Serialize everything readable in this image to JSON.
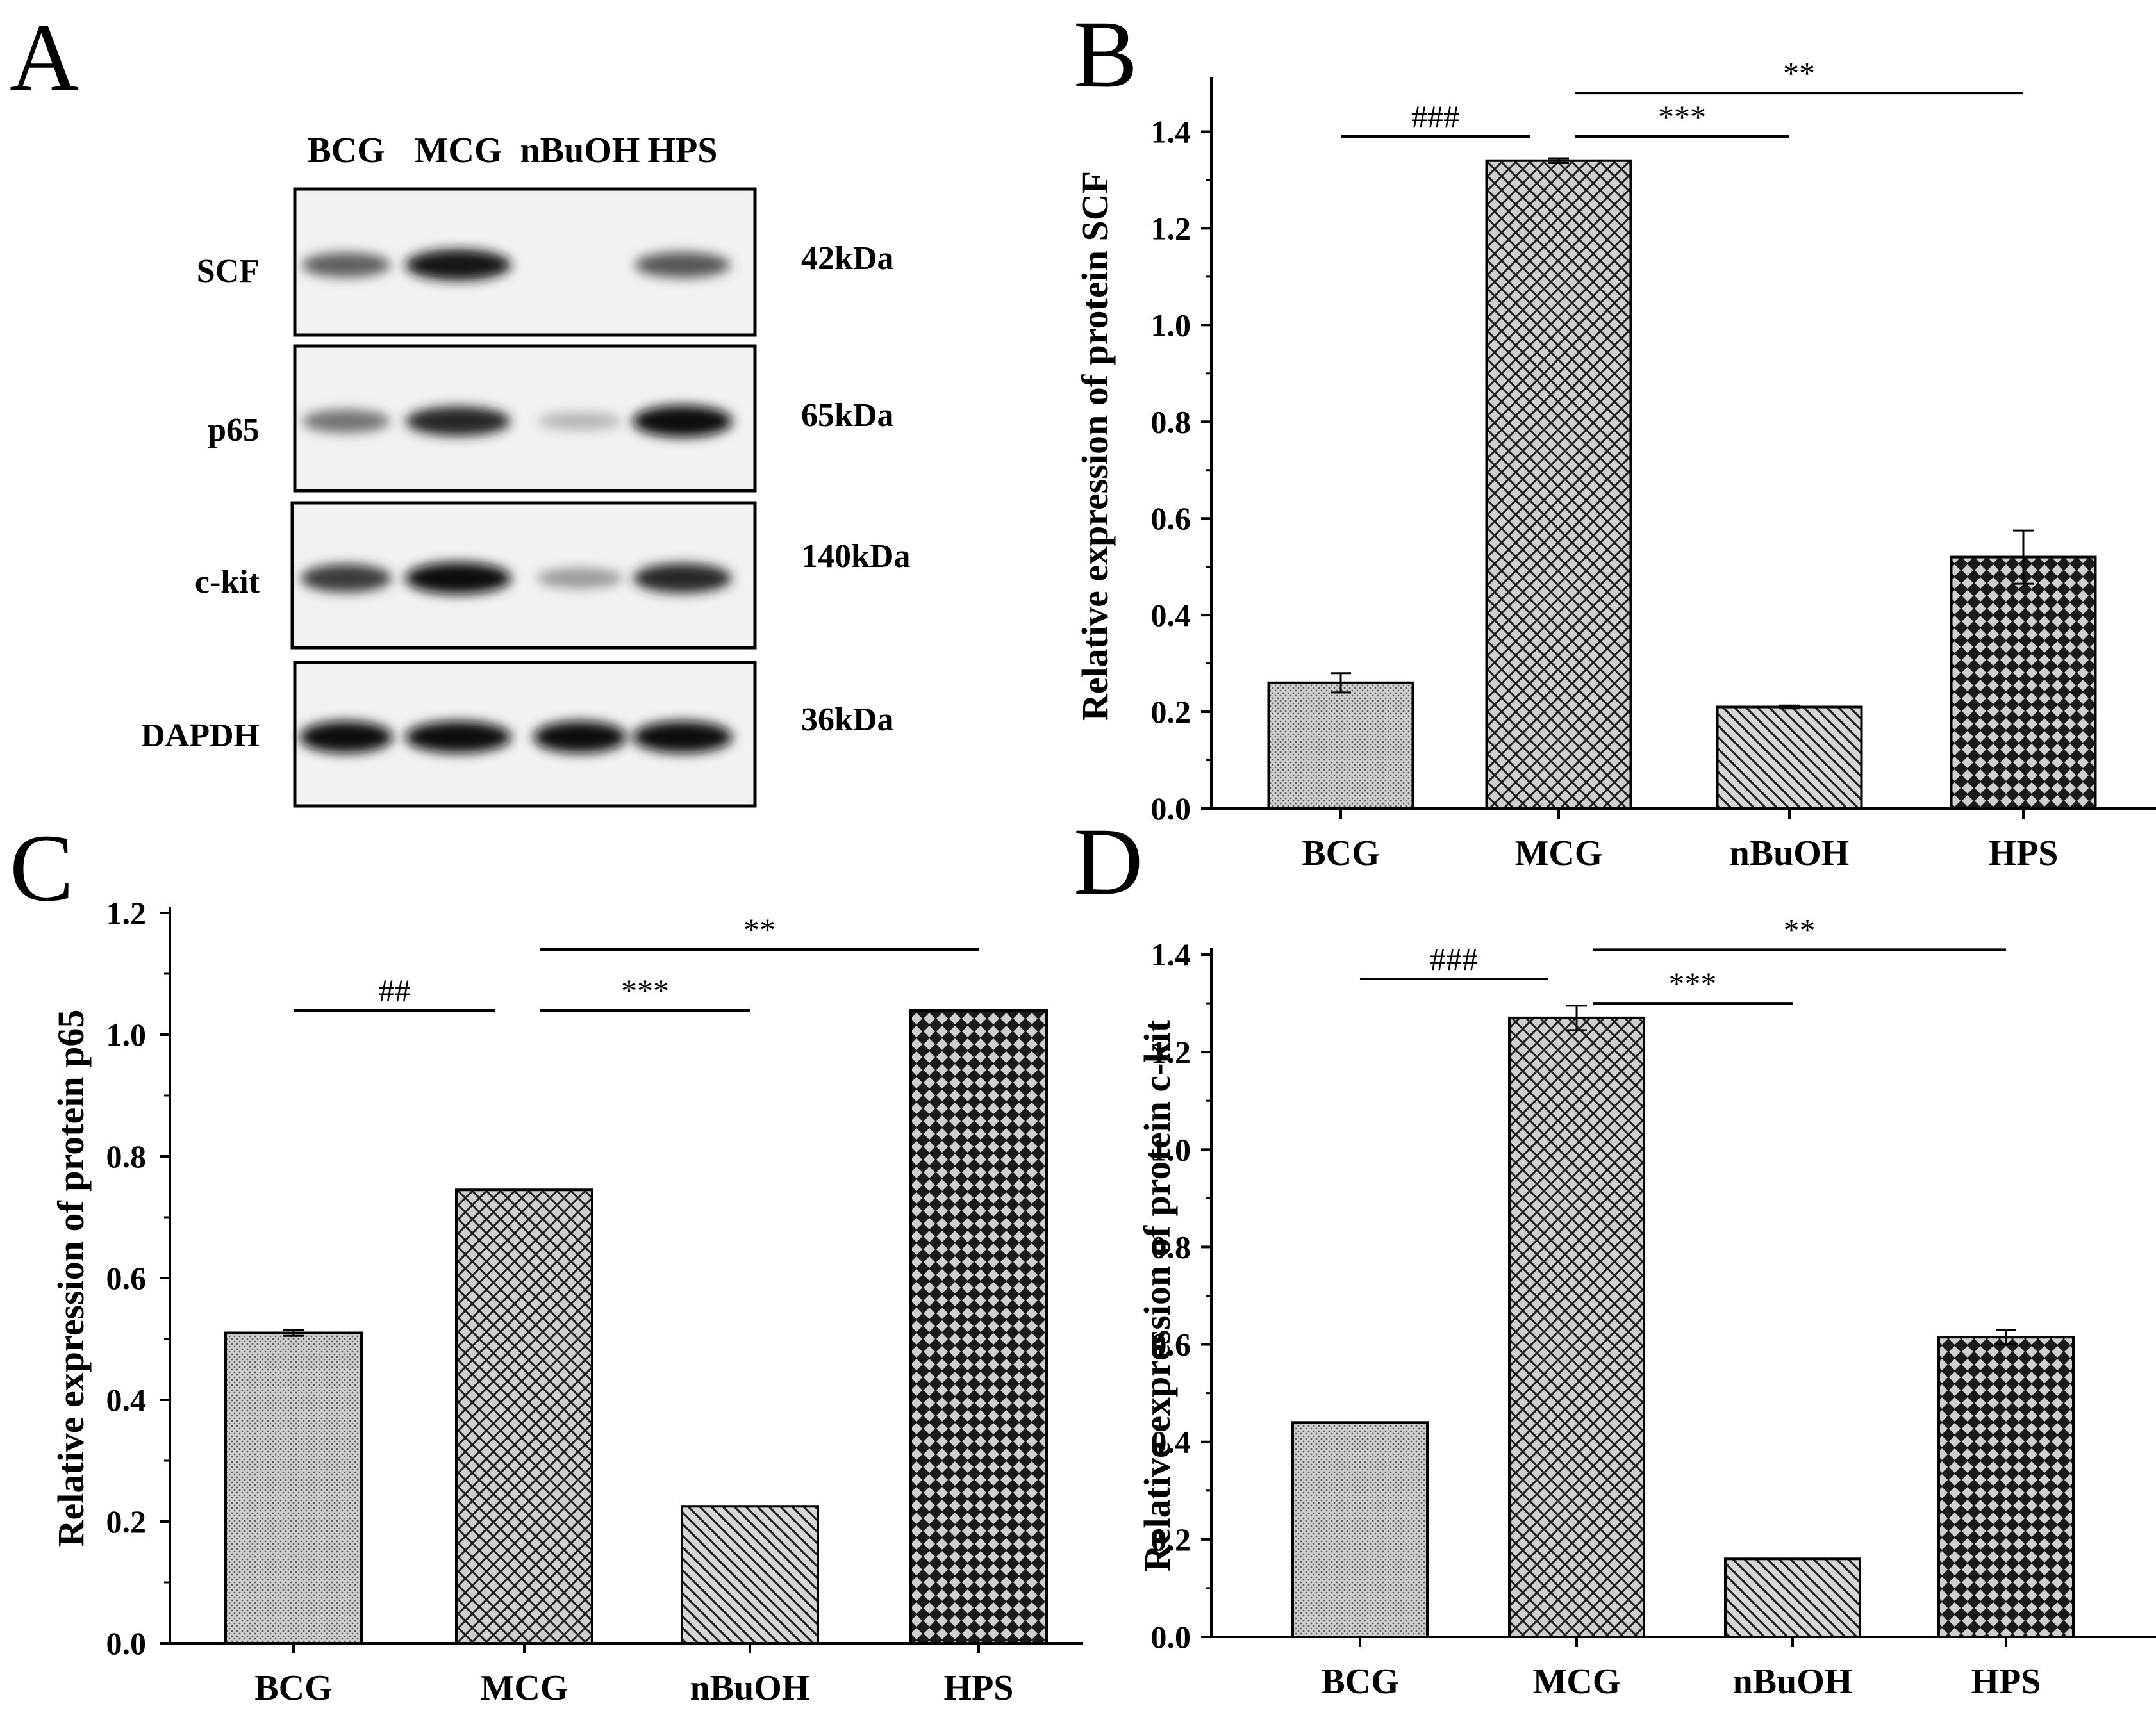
{
  "panel_a": {
    "letter": "A",
    "lanes": [
      "BCG",
      "MCG",
      "nBuOH",
      "HPS"
    ],
    "proteins": [
      {
        "name": "SCF",
        "kda": "42kDa",
        "bands": [
          0.55,
          0.95,
          0.0,
          0.6
        ]
      },
      {
        "name": "p65",
        "kda": "65kDa",
        "bands": [
          0.45,
          0.85,
          0.1,
          1.0
        ]
      },
      {
        "name": "c-kit",
        "kda": "140kDa",
        "bands": [
          0.75,
          1.0,
          0.25,
          0.85
        ]
      },
      {
        "name": "DAPDH",
        "kda": "36kDa",
        "bands": [
          1.0,
          1.0,
          1.0,
          1.0
        ]
      }
    ]
  },
  "chart_data": [
    {
      "panel": "B",
      "type": "bar",
      "categories": [
        "BCG",
        "MCG",
        "nBuOH",
        "HPS"
      ],
      "values": [
        0.26,
        1.34,
        0.21,
        0.52
      ],
      "errors": [
        0.02,
        0.005,
        0.003,
        0.055
      ],
      "ylabel": "Relative expression of protein SCF",
      "xlabel": "",
      "ylim": [
        0,
        1.5
      ],
      "yticks": [
        "0.0",
        "0.2",
        "0.4",
        "0.6",
        "0.8",
        "1.0",
        "1.2",
        "1.4"
      ],
      "annotations": [
        {
          "label": "###",
          "from": "BCG",
          "to": "MCG",
          "y": 1.39
        },
        {
          "label": "***",
          "from": "MCG",
          "to": "nBuOH",
          "y": 1.39
        },
        {
          "label": "**",
          "from": "MCG",
          "to": "HPS",
          "y": 1.48
        }
      ]
    },
    {
      "panel": "C",
      "type": "bar",
      "categories": [
        "BCG",
        "MCG",
        "nBuOH",
        "HPS"
      ],
      "values": [
        0.51,
        0.745,
        0.225,
        1.04
      ],
      "errors": [
        0.005,
        0,
        0,
        0
      ],
      "ylabel": "Relative expression of protein p65",
      "xlabel": "",
      "ylim": [
        0,
        1.2
      ],
      "yticks": [
        "0.0",
        "0.2",
        "0.4",
        "0.6",
        "0.8",
        "1.0",
        "1.2"
      ],
      "annotations": [
        {
          "label": "##",
          "from": "BCG",
          "to": "MCG",
          "y": 1.04
        },
        {
          "label": "***",
          "from": "MCG",
          "to": "nBuOH",
          "y": 1.04
        },
        {
          "label": "**",
          "from": "MCG",
          "to": "HPS",
          "y": 1.14
        }
      ]
    },
    {
      "panel": "D",
      "type": "bar",
      "categories": [
        "BCG",
        "MCG",
        "nBuOH",
        "HPS"
      ],
      "values": [
        0.44,
        1.27,
        0.16,
        0.615
      ],
      "errors": [
        0,
        0.025,
        0,
        0.015
      ],
      "ylabel": "Relative expression of protein c-kit",
      "xlabel": "",
      "ylim": [
        0,
        1.4
      ],
      "yticks": [
        "0.0",
        "0.2",
        "0.4",
        "0.6",
        "0.8",
        "1.0",
        "1.2",
        "1.4"
      ],
      "annotations": [
        {
          "label": "###",
          "from": "BCG",
          "to": "MCG",
          "y": 1.35
        },
        {
          "label": "***",
          "from": "MCG",
          "to": "nBuOH",
          "y": 1.3
        },
        {
          "label": "**",
          "from": "MCG",
          "to": "HPS",
          "y": 1.41
        }
      ]
    }
  ]
}
